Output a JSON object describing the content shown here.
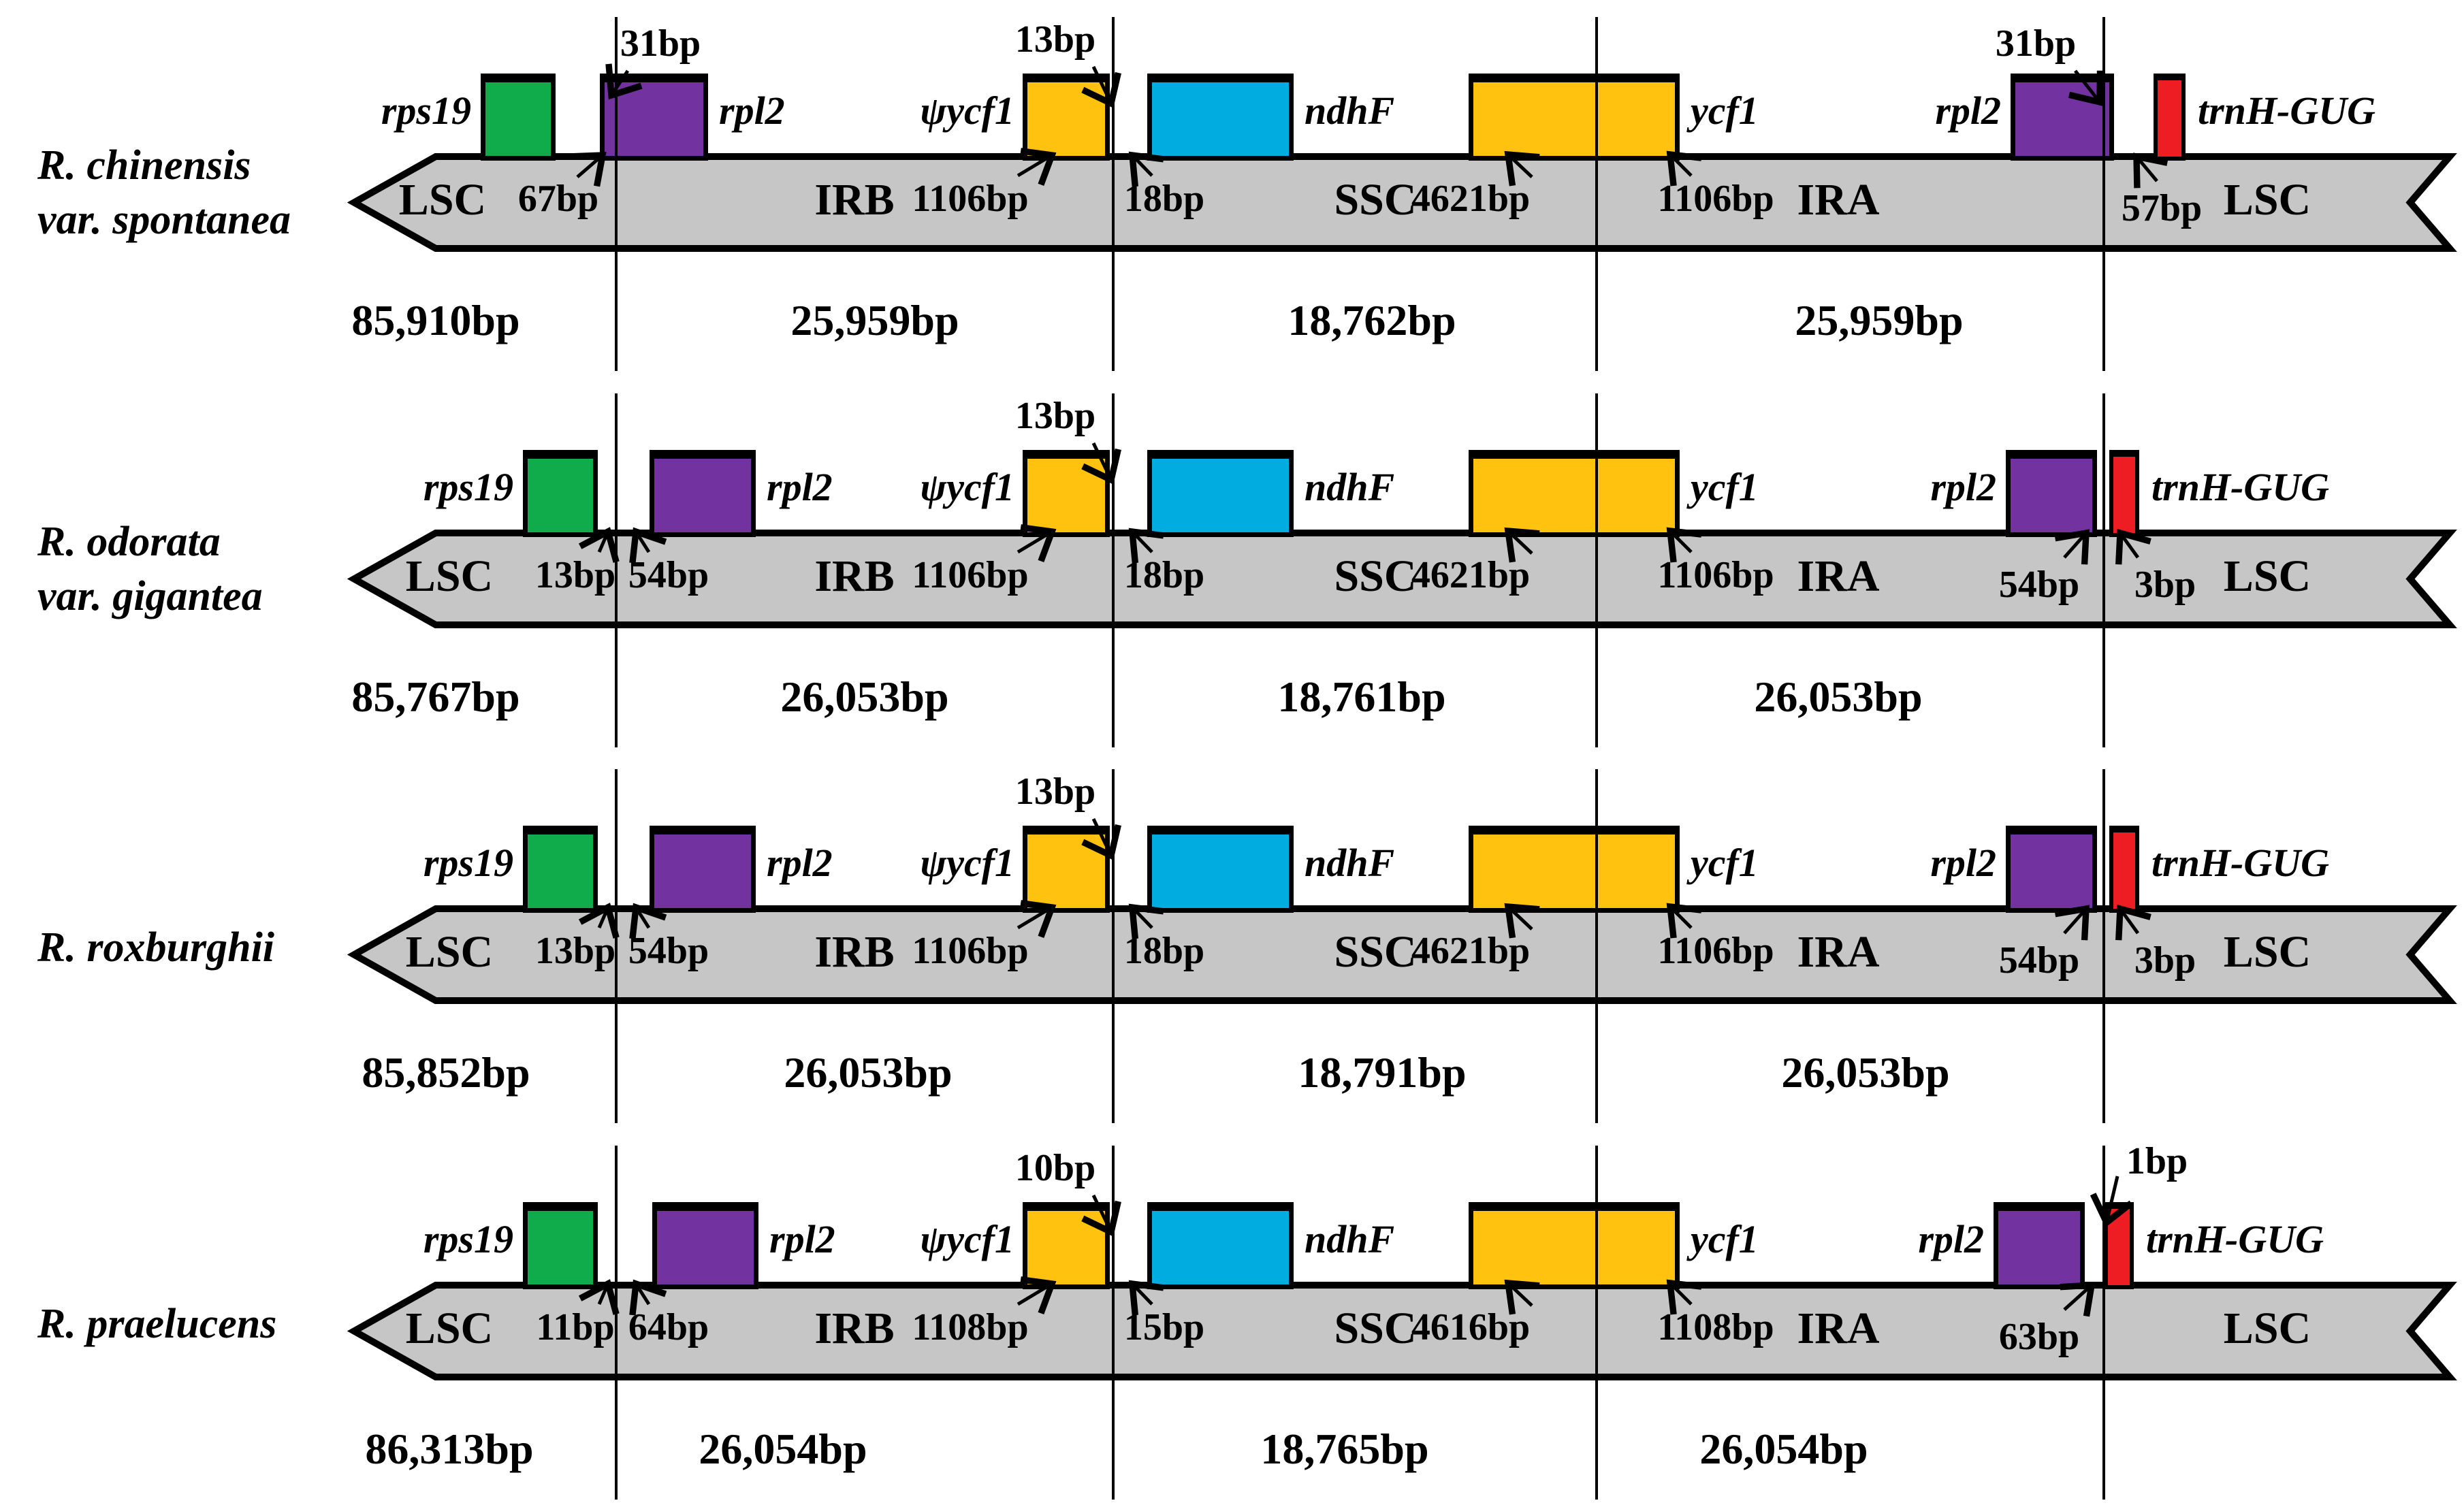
{
  "figure_type": "chloroplast genome IR junction comparison",
  "colors": {
    "bar_fill": "#c6c6c6",
    "outline": "#000000",
    "gene_rps19": "#10ab4a",
    "gene_rpl2": "#7233a0",
    "gene_ycf1_yellow": "#ffc20e",
    "gene_ndhf": "#00ace0",
    "gene_trnh": "#ee1c23"
  },
  "rows": [
    {
      "species": [
        "R. chinensis",
        "var. spontanea"
      ],
      "genes": {
        "rps19": "rps19",
        "rpl2_left": "rpl2",
        "psi_ycf1": "ψycf1",
        "ndhf": "ndhF",
        "ycf1": "ycf1",
        "rpl2_right": "rpl2",
        "trnh": "trnH-GUG"
      },
      "regions": {
        "lsc_left": "LSC",
        "irb": "IRB",
        "ssc": "SSC",
        "ira": "IRA",
        "lsc_right": "LSC"
      },
      "top_labels": {
        "l1": "31bp",
        "l2": "13bp",
        "l4": "31bp"
      },
      "bottom_labels": {
        "l1_left": "67bp",
        "l2_left": "1106bp",
        "l2_right": "18bp",
        "l3_left": "4621bp",
        "l3_right": "1106bp",
        "l4_right": "57bp"
      },
      "sizes": {
        "lsc": "85,910bp",
        "irb": "25,959bp",
        "ssc": "18,762bp",
        "ira": "25,959bp"
      }
    },
    {
      "species": [
        "R. odorata",
        "var. gigantea"
      ],
      "genes": {
        "rps19": "rps19",
        "rpl2_left": "rpl2",
        "psi_ycf1": "ψycf1",
        "ndhf": "ndhF",
        "ycf1": "ycf1",
        "rpl2_right": "rpl2",
        "trnh": "trnH-GUG"
      },
      "regions": {
        "lsc_left": "LSC",
        "irb": "IRB",
        "ssc": "SSC",
        "ira": "IRA",
        "lsc_right": "LSC"
      },
      "top_labels": {
        "l2": "13bp"
      },
      "bottom_labels": {
        "l1_left": "13bp",
        "l1_right": "54bp",
        "l2_left": "1106bp",
        "l2_right": "18bp",
        "l3_left": "4621bp",
        "l3_right": "1106bp",
        "l4_left": "54bp",
        "l4_right": "3bp"
      },
      "sizes": {
        "lsc": "85,767bp",
        "irb": "26,053bp",
        "ssc": "18,761bp",
        "ira": "26,053bp"
      }
    },
    {
      "species": [
        "R. roxburghii"
      ],
      "genes": {
        "rps19": "rps19",
        "rpl2_left": "rpl2",
        "psi_ycf1": "ψycf1",
        "ndhf": "ndhF",
        "ycf1": "ycf1",
        "rpl2_right": "rpl2",
        "trnh": "trnH-GUG"
      },
      "regions": {
        "lsc_left": "LSC",
        "irb": "IRB",
        "ssc": "SSC",
        "ira": "IRA",
        "lsc_right": "LSC"
      },
      "top_labels": {
        "l2": "13bp"
      },
      "bottom_labels": {
        "l1_left": "13bp",
        "l1_right": "54bp",
        "l2_left": "1106bp",
        "l2_right": "18bp",
        "l3_left": "4621bp",
        "l3_right": "1106bp",
        "l4_left": "54bp",
        "l4_right": "3bp"
      },
      "sizes": {
        "lsc": "85,852bp",
        "irb": "26,053bp",
        "ssc": "18,791bp",
        "ira": "26,053bp"
      }
    },
    {
      "species": [
        "R. praelucens"
      ],
      "genes": {
        "rps19": "rps19",
        "rpl2_left": "rpl2",
        "psi_ycf1": "ψycf1",
        "ndhf": "ndhF",
        "ycf1": "ycf1",
        "rpl2_right": "rpl2",
        "trnh": "trnH-GUG"
      },
      "regions": {
        "lsc_left": "LSC",
        "irb": "IRB",
        "ssc": "SSC",
        "ira": "IRA",
        "lsc_right": "LSC"
      },
      "top_labels": {
        "l2": "10bp",
        "l4": "1bp"
      },
      "bottom_labels": {
        "l1_left": "11bp",
        "l1_right": "64bp",
        "l2_left": "1108bp",
        "l2_right": "15bp",
        "l3_left": "4616bp",
        "l3_right": "1108bp",
        "l4_left": "63bp"
      },
      "sizes": {
        "lsc": "86,313bp",
        "irb": "26,054bp",
        "ssc": "18,765bp",
        "ira": "26,054bp"
      }
    }
  ]
}
